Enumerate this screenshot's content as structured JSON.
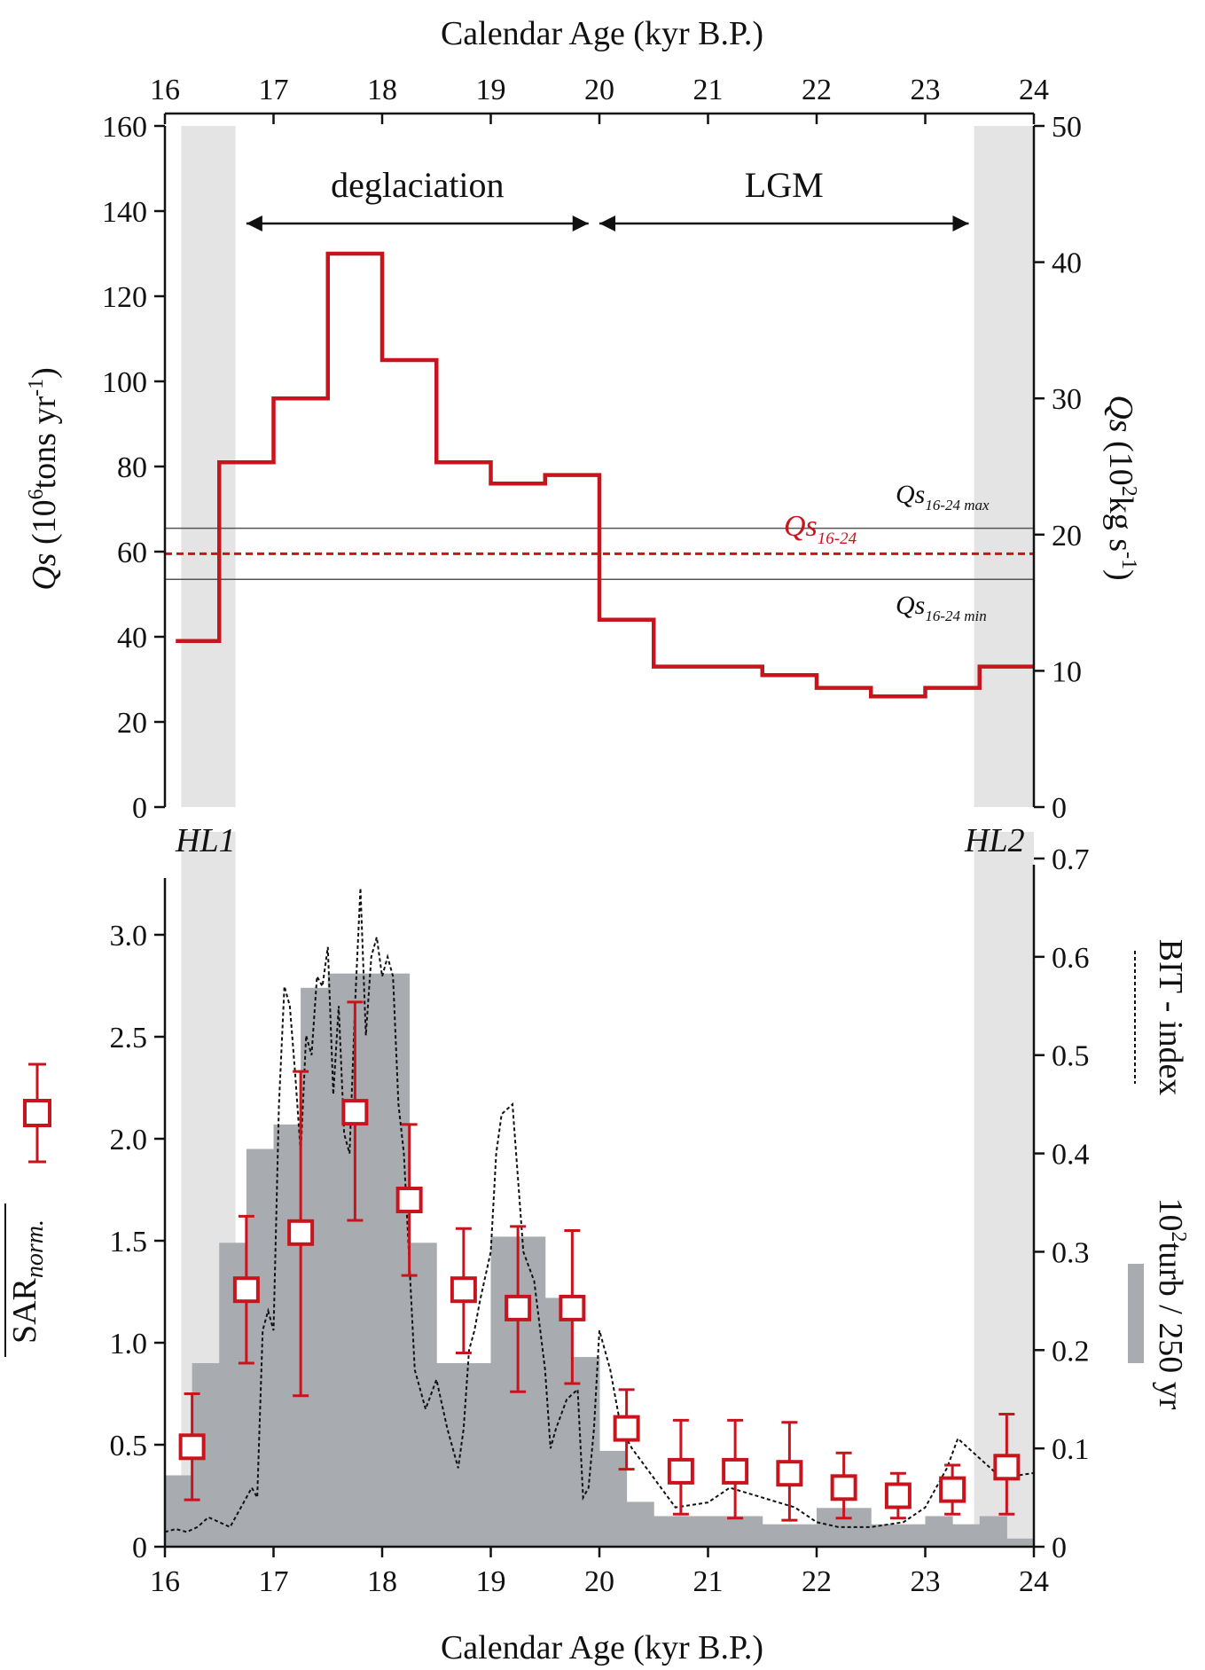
{
  "figure": {
    "top_xlabel": "Calendar Age (kyr B.P.)",
    "bottom_xlabel": "Calendar Age (kyr B.P.)",
    "label_hl1": "HL1",
    "label_hl2": "HL2",
    "colors": {
      "red": "#c8141c",
      "grey_band": "#e4e4e4",
      "bar_grey": "#a8abaf",
      "axis": "#111111"
    }
  },
  "chart_data": [
    {
      "type": "line",
      "subtype": "step",
      "x_ticks": [
        "16",
        "17",
        "18",
        "19",
        "20",
        "21",
        "22",
        "23",
        "24"
      ],
      "xlim": [
        16,
        24
      ],
      "x_reversed": false,
      "ylabel_left": {
        "italic": "Qs",
        "rest": " (10",
        "sup": "6",
        "rest2": "tons yr",
        "sup2": "-1",
        "end": ")"
      },
      "ylim_left": [
        0,
        160
      ],
      "y_ticks_left": [
        "0",
        "20",
        "40",
        "60",
        "80",
        "100",
        "120",
        "140",
        "160"
      ],
      "ylabel_right": {
        "italic": "Qs",
        "rest": " (10",
        "sup": "2",
        "rest2": "kg s",
        "sup2": "-1",
        "end": ")"
      },
      "ylim_right": [
        0,
        50
      ],
      "y_ticks_right": [
        "0",
        "10",
        "20",
        "30",
        "40",
        "50"
      ],
      "grey_bands": [
        [
          16.15,
          16.65
        ],
        [
          23.45,
          24.0
        ]
      ],
      "periods": [
        {
          "label": "deglaciation",
          "from": 16.75,
          "to": 19.9
        },
        {
          "label": "LGM",
          "from": 20.0,
          "to": 23.4
        }
      ],
      "series": [
        {
          "style": "step-red",
          "segments": [
            [
              16.1,
              16.5,
              39
            ],
            [
              16.5,
              17.0,
              81
            ],
            [
              17.0,
              17.5,
              96
            ],
            [
              17.5,
              18.0,
              130
            ],
            [
              18.0,
              18.5,
              105
            ],
            [
              18.5,
              19.0,
              81
            ],
            [
              19.0,
              19.5,
              76
            ],
            [
              19.5,
              20.0,
              78
            ],
            [
              20.0,
              20.5,
              44
            ],
            [
              20.5,
              21.0,
              33
            ],
            [
              21.0,
              21.5,
              33
            ],
            [
              21.5,
              22.0,
              31
            ],
            [
              22.0,
              22.5,
              28
            ],
            [
              22.5,
              23.0,
              26
            ],
            [
              23.0,
              23.5,
              28
            ],
            [
              23.5,
              24.0,
              33
            ]
          ]
        }
      ],
      "reference_lines": [
        {
          "name_italic": "Qs",
          "name_sub": "16-24 max",
          "value": 65.5,
          "style": "thin-grey"
        },
        {
          "name_italic": "Qs",
          "name_sub": "16-24",
          "value": 59.5,
          "style": "dashed-red"
        },
        {
          "name_italic": "Qs",
          "name_sub": "16-24 min",
          "value": 53.5,
          "style": "thin-grey"
        }
      ]
    },
    {
      "type": "bar",
      "x_ticks": [
        "16",
        "17",
        "18",
        "19",
        "20",
        "21",
        "22",
        "23",
        "24"
      ],
      "xlim": [
        16,
        24
      ],
      "ylabel_left": {
        "main": "SAR",
        "sub": "norm."
      },
      "ylim_left": [
        0,
        3.2
      ],
      "y_ticks_left": [
        "0",
        "0.5",
        "1.0",
        "1.5",
        "2.0",
        "2.5",
        "3.0"
      ],
      "ylim_right": [
        0,
        0.7
      ],
      "y_ticks_right": [
        "0",
        "0.1",
        "0.2",
        "0.3",
        "0.4",
        "0.5",
        "0.6",
        "0.7"
      ],
      "legend_bit": "BIT - index",
      "legend_turb": {
        "sup_prefix": "10",
        "sup": "2",
        "text": "turb / 250 yr"
      },
      "turbidite_bars": {
        "edges": [
          16.0,
          16.25,
          16.5,
          16.75,
          17.0,
          17.25,
          17.5,
          17.75,
          18.0,
          18.25,
          18.5,
          18.75,
          19.0,
          19.25,
          19.5,
          19.75,
          20.0,
          20.25,
          20.5,
          20.75,
          21.0,
          21.25,
          21.5,
          21.75,
          22.0,
          22.25,
          22.5,
          22.75,
          23.0,
          23.25,
          23.5,
          23.75,
          24.0
        ],
        "values": [
          0.35,
          0.9,
          1.49,
          1.95,
          2.07,
          2.74,
          2.81,
          2.81,
          2.81,
          1.49,
          0.9,
          0.9,
          1.52,
          1.52,
          1.22,
          0.93,
          0.47,
          0.22,
          0.15,
          0.15,
          0.15,
          0.15,
          0.11,
          0.11,
          0.19,
          0.19,
          0.11,
          0.11,
          0.15,
          0.11,
          0.15,
          0.04
        ]
      },
      "sar": {
        "x": [
          16.25,
          16.75,
          17.25,
          17.75,
          18.25,
          18.75,
          19.25,
          19.75,
          20.25,
          20.75,
          21.25,
          21.75,
          22.25,
          22.75,
          23.25,
          23.75
        ],
        "y": [
          0.49,
          1.26,
          1.54,
          2.13,
          1.7,
          1.26,
          1.17,
          1.17,
          0.58,
          0.37,
          0.37,
          0.36,
          0.29,
          0.25,
          0.28,
          0.39
        ],
        "err_low": [
          0.23,
          0.9,
          0.74,
          1.6,
          1.33,
          0.95,
          0.76,
          0.8,
          0.38,
          0.16,
          0.14,
          0.13,
          0.14,
          0.14,
          0.16,
          0.16
        ],
        "err_high": [
          0.75,
          1.62,
          2.33,
          2.67,
          2.07,
          1.56,
          1.57,
          1.55,
          0.77,
          0.62,
          0.62,
          0.61,
          0.46,
          0.36,
          0.4,
          0.65
        ]
      },
      "bit_index": {
        "x": [
          16.0,
          16.1,
          16.2,
          16.3,
          16.4,
          16.5,
          16.6,
          16.7,
          16.8,
          16.85,
          16.9,
          16.95,
          17.0,
          17.05,
          17.1,
          17.15,
          17.2,
          17.25,
          17.3,
          17.35,
          17.4,
          17.45,
          17.5,
          17.55,
          17.6,
          17.65,
          17.7,
          17.75,
          17.8,
          17.85,
          17.9,
          17.95,
          18.0,
          18.05,
          18.1,
          18.15,
          18.2,
          18.3,
          18.4,
          18.5,
          18.6,
          18.7,
          18.75,
          18.8,
          18.85,
          18.9,
          19.0,
          19.05,
          19.1,
          19.2,
          19.3,
          19.4,
          19.5,
          19.55,
          19.6,
          19.7,
          19.8,
          19.85,
          19.9,
          19.95,
          20.0,
          20.1,
          20.2,
          20.3,
          20.5,
          20.7,
          21.0,
          21.2,
          21.5,
          21.8,
          22.0,
          22.2,
          22.5,
          22.8,
          23.0,
          23.1,
          23.2,
          23.3,
          23.5,
          23.7,
          24.0
        ],
        "y": [
          0.015,
          0.018,
          0.015,
          0.02,
          0.03,
          0.025,
          0.02,
          0.04,
          0.06,
          0.05,
          0.22,
          0.24,
          0.22,
          0.45,
          0.57,
          0.55,
          0.48,
          0.4,
          0.52,
          0.5,
          0.58,
          0.57,
          0.61,
          0.46,
          0.55,
          0.42,
          0.4,
          0.55,
          0.67,
          0.52,
          0.6,
          0.62,
          0.58,
          0.6,
          0.58,
          0.45,
          0.4,
          0.18,
          0.14,
          0.17,
          0.12,
          0.08,
          0.12,
          0.2,
          0.22,
          0.25,
          0.3,
          0.4,
          0.44,
          0.45,
          0.3,
          0.27,
          0.18,
          0.1,
          0.12,
          0.15,
          0.16,
          0.05,
          0.06,
          0.12,
          0.22,
          0.18,
          0.12,
          0.1,
          0.07,
          0.04,
          0.045,
          0.06,
          0.05,
          0.04,
          0.025,
          0.02,
          0.02,
          0.025,
          0.04,
          0.06,
          0.08,
          0.11,
          0.09,
          0.07,
          0.075
        ]
      }
    }
  ]
}
